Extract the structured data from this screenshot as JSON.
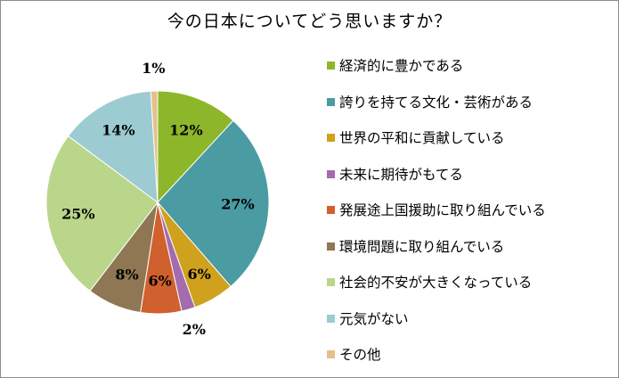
{
  "chart_data": {
    "type": "pie",
    "title": "今の日本についてどう思いますか？",
    "legend_position": "right",
    "slices": [
      {
        "label": "経済的に豊かである",
        "value": 12,
        "value_label": "12%",
        "color": "#8db62b"
      },
      {
        "label": "誇りを持てる文化・芸術がある",
        "value": 27,
        "value_label": "27%",
        "color": "#4b9ba3"
      },
      {
        "label": "世界の平和に貢献している",
        "value": 6,
        "value_label": "6%",
        "color": "#cfa11d"
      },
      {
        "label": "未来に期待がもてる",
        "value": 2,
        "value_label": "2%",
        "color": "#a46cac"
      },
      {
        "label": "発展途上国援助に取り組んでいる",
        "value": 6,
        "value_label": "6%",
        "color": "#d0602d"
      },
      {
        "label": "環境問題に取り組んでいる",
        "value": 8,
        "value_label": "8%",
        "color": "#8e7752"
      },
      {
        "label": "社会的不安が大きくなっている",
        "value": 25,
        "value_label": "25%",
        "color": "#b9d68a"
      },
      {
        "label": "元気がない",
        "value": 14,
        "value_label": "14%",
        "color": "#9ccbd1"
      },
      {
        "label": "その他",
        "value": 1,
        "value_label": "1%",
        "color": "#e5c08a"
      }
    ]
  }
}
